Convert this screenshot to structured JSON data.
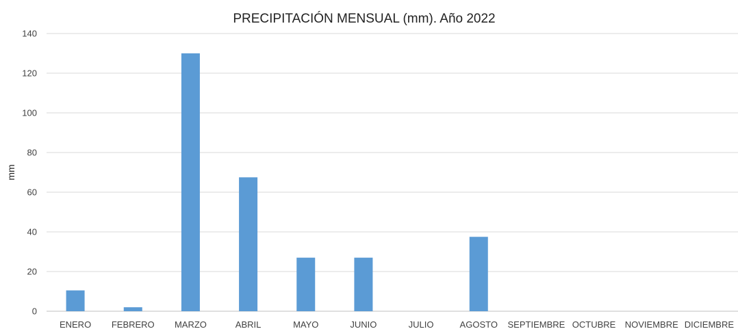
{
  "chart_data": {
    "type": "bar",
    "title": "PRECIPITACIÓN MENSUAL (mm). Año 2022",
    "xlabel": "",
    "ylabel": "mm",
    "categories": [
      "ENERO",
      "FEBRERO",
      "MARZO",
      "ABRIL",
      "MAYO",
      "JUNIO",
      "JULIO",
      "AGOSTO",
      "SEPTIEMBRE",
      "OCTUBRE",
      "NOVIEMBRE",
      "DICIEMBRE"
    ],
    "values": [
      10.5,
      2,
      130,
      67.5,
      27,
      27,
      0,
      37.5,
      0,
      0,
      0,
      0
    ],
    "ylim": [
      0,
      140
    ],
    "yticks": [
      0,
      20,
      40,
      60,
      80,
      100,
      120,
      140
    ],
    "grid": true,
    "legend": "none",
    "bar_color": "#5b9bd5"
  }
}
